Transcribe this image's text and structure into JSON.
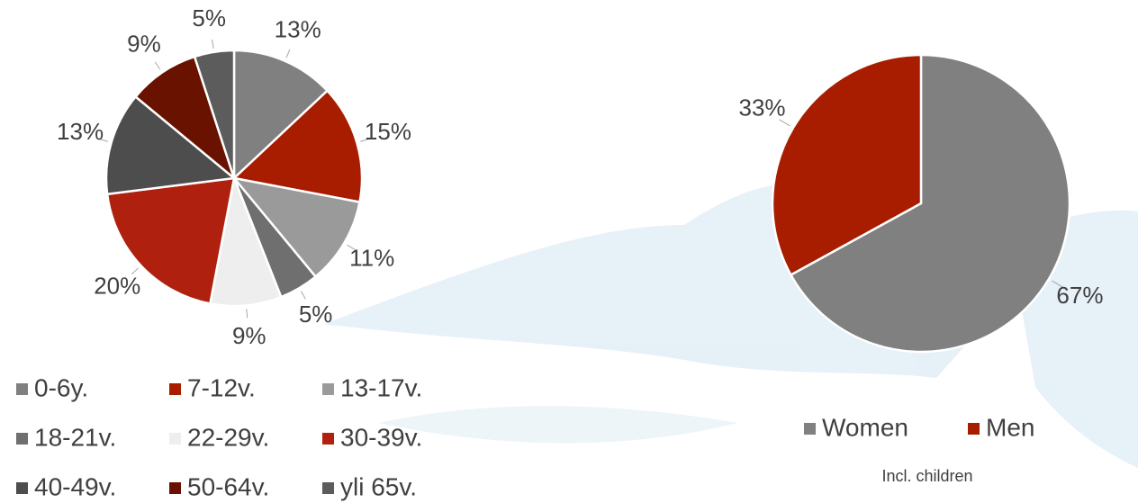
{
  "chart_data": [
    {
      "type": "pie",
      "categories": [
        "0-6y.",
        "7-12v.",
        "13-17v.",
        "18-21v.",
        "22-29v.",
        "30-39v.",
        "40-49v.",
        "50-64v.",
        "yli 65v."
      ],
      "values": [
        13,
        15,
        11,
        5,
        9,
        20,
        13,
        9,
        5
      ],
      "value_labels": [
        "13%",
        "15%",
        "11%",
        "5%",
        "9%",
        "20%",
        "13%",
        "9%",
        "5%"
      ],
      "colors": [
        "#808080",
        "#a81d00",
        "#9a9a9a",
        "#6f6f6f",
        "#eeeeee",
        "#b0200e",
        "#4d4d4d",
        "#6a1200",
        "#5c5c5c"
      ]
    },
    {
      "type": "pie",
      "categories": [
        "Women",
        "Men"
      ],
      "values": [
        67,
        33
      ],
      "value_labels": [
        "67%",
        "33%"
      ],
      "colors": [
        "#808080",
        "#a81d00"
      ],
      "caption": "Incl. children"
    }
  ]
}
